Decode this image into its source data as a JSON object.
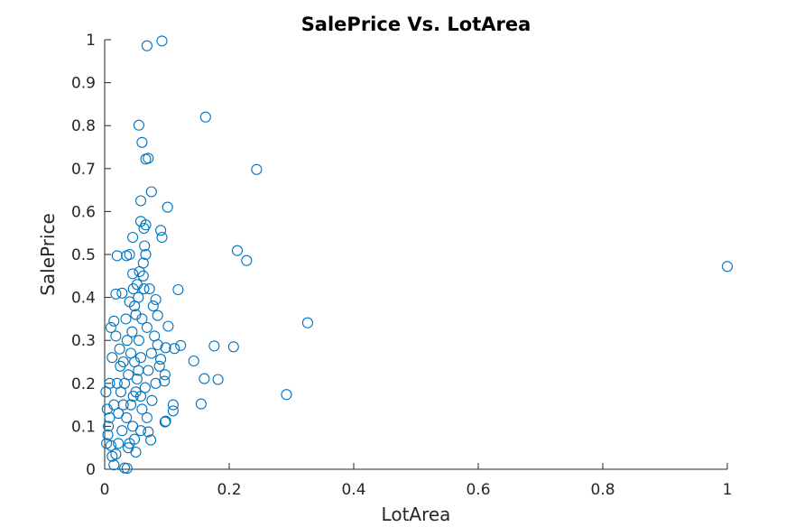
{
  "chart_data": {
    "type": "scatter",
    "title": "SalePrice Vs. LotArea",
    "xlabel": "LotArea",
    "ylabel": "SalePrice",
    "xlim": [
      0,
      1
    ],
    "ylim": [
      0,
      1
    ],
    "xticks": [
      "0",
      "0.2",
      "0.4",
      "0.6",
      "0.8",
      "1"
    ],
    "yticks": [
      "0",
      "0.1",
      "0.2",
      "0.3",
      "0.4",
      "0.5",
      "0.6",
      "0.7",
      "0.8",
      "0.9",
      "1"
    ],
    "grid": false,
    "marker": "circle-open",
    "color": "#0072BD",
    "series": [
      {
        "points": [
          [
            0.092,
            0.997
          ],
          [
            0.068,
            0.986
          ],
          [
            0.162,
            0.82
          ],
          [
            0.055,
            0.801
          ],
          [
            0.06,
            0.761
          ],
          [
            0.07,
            0.724
          ],
          [
            0.066,
            0.722
          ],
          [
            0.244,
            0.698
          ],
          [
            0.075,
            0.646
          ],
          [
            0.058,
            0.625
          ],
          [
            0.101,
            0.61
          ],
          [
            0.058,
            0.577
          ],
          [
            0.066,
            0.569
          ],
          [
            0.063,
            0.561
          ],
          [
            0.09,
            0.556
          ],
          [
            0.092,
            0.54
          ],
          [
            0.213,
            0.509
          ],
          [
            0.02,
            0.497
          ],
          [
            0.035,
            0.497
          ],
          [
            0.228,
            0.486
          ],
          [
            1.0,
            0.472
          ],
          [
            0.045,
            0.455
          ],
          [
            0.062,
            0.48
          ],
          [
            0.118,
            0.418
          ],
          [
            0.018,
            0.408
          ],
          [
            0.082,
            0.395
          ],
          [
            0.063,
            0.42
          ],
          [
            0.326,
            0.341
          ],
          [
            0.102,
            0.333
          ],
          [
            0.085,
            0.358
          ],
          [
            0.122,
            0.288
          ],
          [
            0.176,
            0.287
          ],
          [
            0.207,
            0.285
          ],
          [
            0.098,
            0.283
          ],
          [
            0.112,
            0.281
          ],
          [
            0.143,
            0.252
          ],
          [
            0.09,
            0.256
          ],
          [
            0.097,
            0.22
          ],
          [
            0.096,
            0.205
          ],
          [
            0.16,
            0.211
          ],
          [
            0.182,
            0.209
          ],
          [
            0.292,
            0.174
          ],
          [
            0.155,
            0.152
          ],
          [
            0.11,
            0.15
          ],
          [
            0.11,
            0.136
          ],
          [
            0.097,
            0.11
          ],
          [
            0.098,
            0.112
          ],
          [
            0.074,
            0.068
          ],
          [
            0.07,
            0.087
          ],
          [
            0.032,
            0.003
          ],
          [
            0.036,
            0.002
          ],
          [
            0.015,
            0.01
          ],
          [
            0.01,
            0.055
          ],
          [
            0.012,
            0.03
          ],
          [
            0.018,
            0.035
          ],
          [
            0.022,
            0.06
          ],
          [
            0.005,
            0.08
          ],
          [
            0.008,
            0.12
          ],
          [
            0.015,
            0.15
          ],
          [
            0.02,
            0.2
          ],
          [
            0.025,
            0.24
          ],
          [
            0.012,
            0.26
          ],
          [
            0.018,
            0.31
          ],
          [
            0.01,
            0.33
          ],
          [
            0.015,
            0.345
          ],
          [
            0.028,
            0.41
          ],
          [
            0.04,
            0.5
          ],
          [
            0.045,
            0.54
          ],
          [
            0.052,
            0.43
          ],
          [
            0.048,
            0.38
          ],
          [
            0.06,
            0.35
          ],
          [
            0.055,
            0.3
          ],
          [
            0.042,
            0.27
          ],
          [
            0.038,
            0.22
          ],
          [
            0.05,
            0.18
          ],
          [
            0.03,
            0.15
          ],
          [
            0.035,
            0.12
          ],
          [
            0.045,
            0.1
          ],
          [
            0.028,
            0.09
          ],
          [
            0.04,
            0.06
          ],
          [
            0.05,
            0.04
          ],
          [
            0.06,
            0.14
          ],
          [
            0.065,
            0.19
          ],
          [
            0.07,
            0.23
          ],
          [
            0.075,
            0.27
          ],
          [
            0.08,
            0.31
          ],
          [
            0.068,
            0.33
          ],
          [
            0.058,
            0.26
          ],
          [
            0.052,
            0.21
          ],
          [
            0.046,
            0.17
          ],
          [
            0.032,
            0.2
          ],
          [
            0.026,
            0.18
          ],
          [
            0.022,
            0.13
          ],
          [
            0.03,
            0.25
          ],
          [
            0.036,
            0.3
          ],
          [
            0.044,
            0.32
          ],
          [
            0.05,
            0.36
          ],
          [
            0.054,
            0.4
          ],
          [
            0.062,
            0.45
          ],
          [
            0.066,
            0.5
          ],
          [
            0.072,
            0.42
          ],
          [
            0.078,
            0.38
          ],
          [
            0.085,
            0.29
          ],
          [
            0.088,
            0.24
          ],
          [
            0.082,
            0.2
          ],
          [
            0.076,
            0.16
          ],
          [
            0.068,
            0.12
          ],
          [
            0.058,
            0.09
          ],
          [
            0.048,
            0.07
          ],
          [
            0.038,
            0.05
          ],
          [
            0.002,
            0.18
          ],
          [
            0.004,
            0.14
          ],
          [
            0.006,
            0.1
          ],
          [
            0.008,
            0.2
          ],
          [
            0.003,
            0.06
          ],
          [
            0.024,
            0.28
          ],
          [
            0.034,
            0.35
          ],
          [
            0.04,
            0.39
          ],
          [
            0.046,
            0.42
          ],
          [
            0.056,
            0.46
          ],
          [
            0.064,
            0.52
          ],
          [
            0.042,
            0.15
          ],
          [
            0.048,
            0.25
          ],
          [
            0.054,
            0.23
          ],
          [
            0.058,
            0.17
          ]
        ]
      }
    ]
  }
}
